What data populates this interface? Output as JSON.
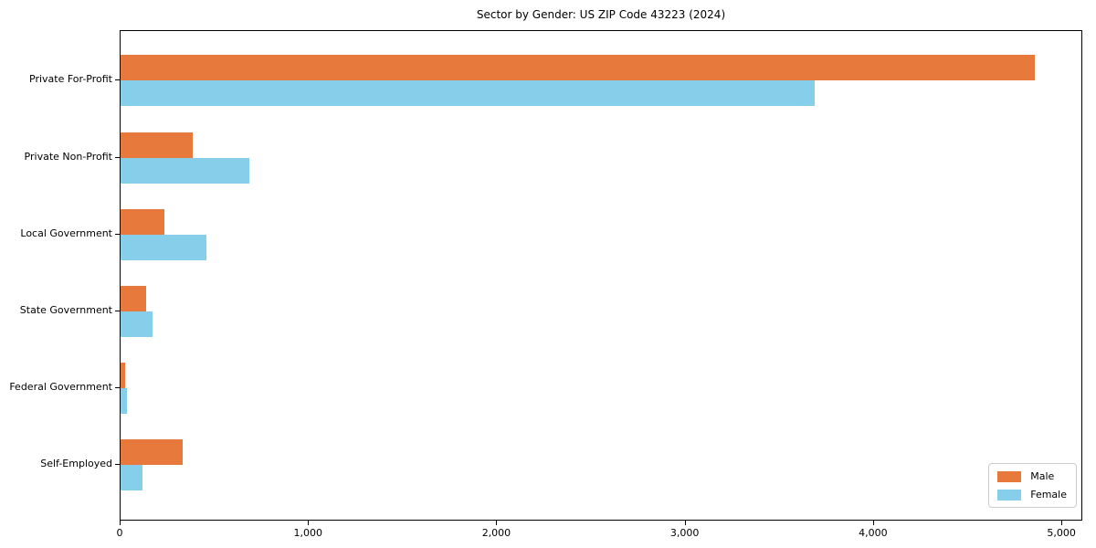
{
  "chart_data": {
    "type": "bar",
    "orientation": "horizontal",
    "title": "Sector by Gender: US ZIP Code 43223 (2024)",
    "categories": [
      "Private For-Profit",
      "Private Non-Profit",
      "Local Government",
      "State Government",
      "Federal Government",
      "Self-Employed"
    ],
    "series": [
      {
        "name": "Male",
        "color": "#e8793c",
        "values": [
          4865,
          385,
          235,
          135,
          25,
          330
        ]
      },
      {
        "name": "Female",
        "color": "#87ceeb",
        "values": [
          3690,
          685,
          455,
          170,
          35,
          115
        ]
      }
    ],
    "xlabel": "",
    "ylabel": "",
    "xlim": [
      0,
      5111
    ],
    "xticks": [
      0,
      1000,
      2000,
      3000,
      4000,
      5000
    ],
    "xtick_labels": [
      "0",
      "1,000",
      "2,000",
      "3,000",
      "4,000",
      "5,000"
    ],
    "grid": false,
    "legend": {
      "position": "lower right",
      "labels": [
        "Male",
        "Female"
      ]
    },
    "colors": {
      "axis": "#000000",
      "background": "#ffffff",
      "legend_border": "#cccccc"
    }
  }
}
